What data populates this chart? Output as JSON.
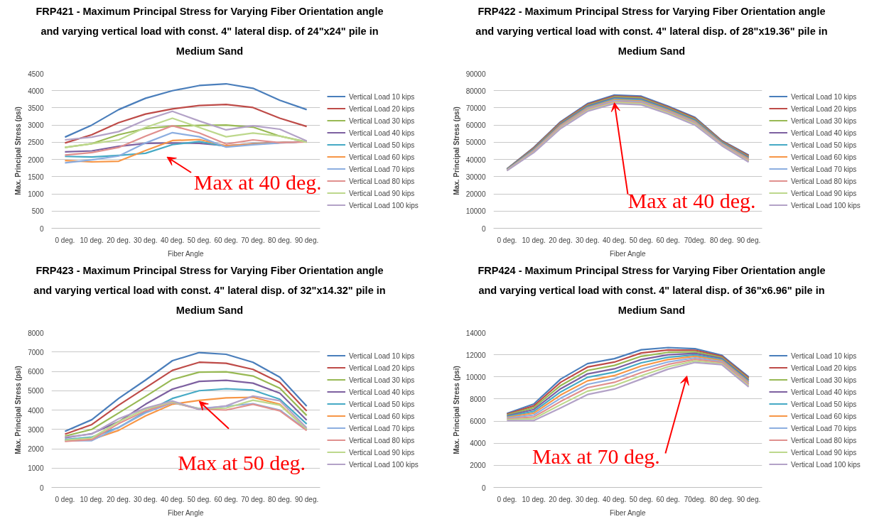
{
  "chart_data": [
    {
      "type": "line",
      "title": "FRP421 - Maximum Principal Stress for Varying Fiber Orientation angle and varying vertical load with const. 4\" lateral disp. of 24\"x24\" pile in Medium Sand",
      "xlabel": "Fiber Angle",
      "ylabel": "Max. Principal Stress (psi)",
      "categories": [
        "0 deg.",
        "10 deg.",
        "20 deg.",
        "30 deg.",
        "40 deg.",
        "50 deg.",
        "60 deg.",
        "70 deg.",
        "80 deg.",
        "90 deg."
      ],
      "ylim": [
        0,
        4500
      ],
      "yticks": [
        0,
        500,
        1000,
        1500,
        2000,
        2500,
        3000,
        3500,
        4000,
        4500
      ],
      "grid": "y",
      "legend": "right",
      "annotations": [
        "Max at 40 deg."
      ],
      "series": [
        {
          "name": "Vertical Load 10 kips",
          "color": "#4a7ebb",
          "values": [
            2650,
            3000,
            3450,
            3780,
            4000,
            4150,
            4200,
            4070,
            3720,
            3450
          ]
        },
        {
          "name": "Vertical Load 20 kips",
          "color": "#be4b48",
          "values": [
            2480,
            2720,
            3070,
            3320,
            3470,
            3570,
            3600,
            3510,
            3200,
            2960
          ]
        },
        {
          "name": "Vertical Load 30 kips",
          "color": "#98b954",
          "values": [
            2350,
            2460,
            2720,
            2900,
            2970,
            2990,
            3000,
            2940,
            2680,
            2510
          ]
        },
        {
          "name": "Vertical Load 40 kips",
          "color": "#7d60a0",
          "values": [
            2220,
            2250,
            2380,
            2470,
            2480,
            2470,
            2400,
            2460,
            2490,
            2520
          ]
        },
        {
          "name": "Vertical Load 50 kips",
          "color": "#46aac5",
          "values": [
            2090,
            2070,
            2120,
            2180,
            2430,
            2520,
            2380,
            2450,
            2490,
            2520
          ]
        },
        {
          "name": "Vertical Load 60 kips",
          "color": "#f79646",
          "values": [
            1970,
            1930,
            1950,
            2260,
            2550,
            2580,
            2400,
            2450,
            2490,
            2520
          ]
        },
        {
          "name": "Vertical Load 70 kips",
          "color": "#8caee0",
          "values": [
            1900,
            1990,
            2100,
            2480,
            2780,
            2660,
            2360,
            2430,
            2480,
            2520
          ]
        },
        {
          "name": "Vertical Load 80 kips",
          "color": "#e0908e",
          "values": [
            2130,
            2200,
            2350,
            2680,
            2980,
            2770,
            2450,
            2570,
            2490,
            2510
          ]
        },
        {
          "name": "Vertical Load 90 kips",
          "color": "#bdd88c",
          "values": [
            2350,
            2460,
            2570,
            2930,
            3200,
            2930,
            2660,
            2770,
            2680,
            2500
          ]
        },
        {
          "name": "Vertical Load 100 kips",
          "color": "#b3a2c7",
          "values": [
            2570,
            2650,
            2810,
            3150,
            3400,
            3120,
            2860,
            2980,
            2880,
            2540
          ]
        }
      ]
    },
    {
      "type": "line",
      "title": "FRP422 - Maximum Principal Stress for Varying Fiber Orientation angle and varying vertical load with const. 4\" lateral disp. of 28\"x19.36\" pile in Medium Sand",
      "xlabel": "Fiber Angle",
      "ylabel": "Max. Principal Stress (psi)",
      "categories": [
        "0 deg.",
        "10 deg.",
        "20 deg.",
        "30 deg.",
        "40 deg.",
        "50 deg.",
        "60 deg.",
        "70deg.",
        "80 deg.",
        "90 deg."
      ],
      "ylim": [
        0,
        90000
      ],
      "yticks": [
        0,
        10000,
        20000,
        30000,
        40000,
        50000,
        60000,
        70000,
        80000,
        90000
      ],
      "grid": "y",
      "legend": "right",
      "annotations": [
        {
          "text": "Max at 40 deg.",
          "x": "40 deg.",
          "y": 73000
        }
      ],
      "series": [
        {
          "name": "Vertical Load 10 kips",
          "color": "#4a7ebb",
          "values": [
            34500,
            47000,
            62000,
            72500,
            77500,
            76800,
            71000,
            64500,
            51000,
            42500
          ]
        },
        {
          "name": "Vertical Load 20 kips",
          "color": "#be4b48",
          "values": [
            34400,
            46700,
            61600,
            72000,
            76900,
            76200,
            70500,
            64000,
            50700,
            42100
          ]
        },
        {
          "name": "Vertical Load 30 kips",
          "color": "#98b954",
          "values": [
            34300,
            46300,
            61100,
            71500,
            76400,
            75700,
            70000,
            63500,
            50300,
            41600
          ]
        },
        {
          "name": "Vertical Load 40 kips",
          "color": "#7d60a0",
          "values": [
            34200,
            46000,
            60700,
            71000,
            75800,
            75100,
            69500,
            63000,
            50000,
            41200
          ]
        },
        {
          "name": "Vertical Load 50 kips",
          "color": "#46aac5",
          "values": [
            34100,
            45700,
            60200,
            70500,
            75300,
            74600,
            69000,
            62500,
            49700,
            40700
          ]
        },
        {
          "name": "Vertical Load 60 kips",
          "color": "#f79646",
          "values": [
            33900,
            45300,
            59800,
            70000,
            74700,
            74000,
            68500,
            62000,
            49300,
            40300
          ]
        },
        {
          "name": "Vertical Load 70 kips",
          "color": "#8caee0",
          "values": [
            33800,
            45000,
            59300,
            69500,
            74200,
            73500,
            68000,
            61500,
            49000,
            39800
          ]
        },
        {
          "name": "Vertical Load 80 kips",
          "color": "#e0908e",
          "values": [
            33700,
            44700,
            58900,
            69000,
            73600,
            72900,
            67500,
            61000,
            48700,
            39400
          ]
        },
        {
          "name": "Vertical Load 90 kips",
          "color": "#bdd88c",
          "values": [
            33600,
            44300,
            58400,
            68500,
            73100,
            72400,
            67000,
            60500,
            48300,
            38900
          ]
        },
        {
          "name": "Vertical Load 100 kips",
          "color": "#b3a2c7",
          "values": [
            33500,
            44000,
            58000,
            68000,
            72500,
            71800,
            66500,
            60000,
            48000,
            38500
          ]
        }
      ]
    },
    {
      "type": "line",
      "title": "FRP423 - Maximum Principal Stress for Varying Fiber Orientation angle and varying vertical load with const. 4\" lateral disp. of 32\"x14.32\" pile in Medium Sand",
      "xlabel": "Fiber Angle",
      "ylabel": "Max. Principal Stress (psi)",
      "categories": [
        "0 deg.",
        "10 deg.",
        "20 deg.",
        "30 deg.",
        "40 deg.",
        "50 deg.",
        "60 deg.",
        "70 deg.",
        "80 deg.",
        "90 deg."
      ],
      "ylim": [
        0,
        8000
      ],
      "yticks": [
        0,
        1000,
        2000,
        3000,
        4000,
        5000,
        6000,
        7000,
        8000
      ],
      "grid": "y",
      "legend": "right",
      "annotations": [
        {
          "text": "Max at 50 deg.",
          "x": "50 deg.",
          "y": 4450
        }
      ],
      "series": [
        {
          "name": "Vertical Load 10 kips",
          "color": "#4a7ebb",
          "values": [
            2900,
            3500,
            4600,
            5550,
            6550,
            6970,
            6880,
            6470,
            5700,
            4200
          ]
        },
        {
          "name": "Vertical Load 20 kips",
          "color": "#be4b48",
          "values": [
            2750,
            3250,
            4250,
            5150,
            6050,
            6470,
            6420,
            6100,
            5420,
            3950
          ]
        },
        {
          "name": "Vertical Load 30 kips",
          "color": "#98b954",
          "values": [
            2650,
            3000,
            3850,
            4700,
            5580,
            5960,
            5980,
            5760,
            5130,
            3720
          ]
        },
        {
          "name": "Vertical Load 40 kips",
          "color": "#7d60a0",
          "values": [
            2560,
            2780,
            3400,
            4300,
            5080,
            5480,
            5540,
            5390,
            4870,
            3480
          ]
        },
        {
          "name": "Vertical Load 50 kips",
          "color": "#46aac5",
          "values": [
            2470,
            2600,
            3100,
            3900,
            4600,
            5000,
            5100,
            5030,
            4560,
            3280
          ]
        },
        {
          "name": "Vertical Load 60 kips",
          "color": "#f79646",
          "values": [
            2400,
            2480,
            2950,
            3700,
            4300,
            4500,
            4630,
            4660,
            4300,
            3000
          ]
        },
        {
          "name": "Vertical Load 70 kips",
          "color": "#8caee0",
          "values": [
            2420,
            2420,
            3100,
            3850,
            4380,
            4080,
            4200,
            4330,
            4000,
            2980
          ]
        },
        {
          "name": "Vertical Load 80 kips",
          "color": "#e0908e",
          "values": [
            2380,
            2470,
            3300,
            3950,
            4400,
            4040,
            4000,
            4300,
            3960,
            2940
          ]
        },
        {
          "name": "Vertical Load 90 kips",
          "color": "#bdd88c",
          "values": [
            2450,
            2560,
            3400,
            4050,
            4420,
            4060,
            4100,
            4510,
            4250,
            3020
          ]
        },
        {
          "name": "Vertical Load 100 kips",
          "color": "#b3a2c7",
          "values": [
            2600,
            2760,
            3550,
            4100,
            4470,
            4030,
            4220,
            4720,
            4480,
            3080
          ]
        }
      ]
    },
    {
      "type": "line",
      "title": "FRP424 - Maximum Principal Stress for Varying Fiber Orientation angle and varying vertical load with const. 4\" lateral disp. of 36\"x6.96\" pile in Medium Sand",
      "xlabel": "Fiber Angle",
      "ylabel": "Max. Principal Stress (psi)",
      "categories": [
        "0 deg.",
        "10 deg.",
        "20 deg.",
        "30 deg.",
        "40 deg.",
        "50 deg.",
        "60 deg.",
        "70deg.",
        "80 deg.",
        "90 deg."
      ],
      "ylim": [
        0,
        14000
      ],
      "yticks": [
        0,
        2000,
        4000,
        6000,
        8000,
        10000,
        12000,
        14000
      ],
      "grid": "y",
      "legend": "right",
      "annotations": [
        "Max at 70 deg."
      ],
      "series": [
        {
          "name": "Vertical Load 10 kips",
          "color": "#4a7ebb",
          "values": [
            6700,
            7550,
            9800,
            11200,
            11650,
            12450,
            12650,
            12550,
            11950,
            10000
          ]
        },
        {
          "name": "Vertical Load 20 kips",
          "color": "#be4b48",
          "values": [
            6630,
            7380,
            9510,
            10890,
            11340,
            12160,
            12430,
            12410,
            11860,
            9900
          ]
        },
        {
          "name": "Vertical Load 30 kips",
          "color": "#98b954",
          "values": [
            6560,
            7220,
            9220,
            10580,
            11040,
            11860,
            12220,
            12270,
            11760,
            9800
          ]
        },
        {
          "name": "Vertical Load 40 kips",
          "color": "#7d60a0",
          "values": [
            6480,
            7050,
            8930,
            10270,
            10730,
            11570,
            12000,
            12130,
            11670,
            9700
          ]
        },
        {
          "name": "Vertical Load 50 kips",
          "color": "#46aac5",
          "values": [
            6410,
            6880,
            8640,
            9960,
            10430,
            11270,
            11780,
            11990,
            11570,
            9600
          ]
        },
        {
          "name": "Vertical Load 60 kips",
          "color": "#f79646",
          "values": [
            6340,
            6720,
            8360,
            9640,
            10120,
            10980,
            11570,
            11860,
            11480,
            9500
          ]
        },
        {
          "name": "Vertical Load 70 kips",
          "color": "#8caee0",
          "values": [
            6270,
            6550,
            8070,
            9330,
            9820,
            10690,
            11350,
            11720,
            11380,
            9400
          ]
        },
        {
          "name": "Vertical Load 80 kips",
          "color": "#e0908e",
          "values": [
            6190,
            6380,
            7780,
            9020,
            9510,
            10390,
            11130,
            11580,
            11290,
            9300
          ]
        },
        {
          "name": "Vertical Load 90 kips",
          "color": "#bdd88c",
          "values": [
            6120,
            6220,
            7490,
            8710,
            9210,
            10100,
            10920,
            11440,
            11190,
            9200
          ]
        },
        {
          "name": "Vertical Load 100 kips",
          "color": "#b3a2c7",
          "values": [
            6050,
            6050,
            7200,
            8400,
            8900,
            9800,
            10700,
            11300,
            11100,
            9100
          ]
        }
      ]
    }
  ]
}
